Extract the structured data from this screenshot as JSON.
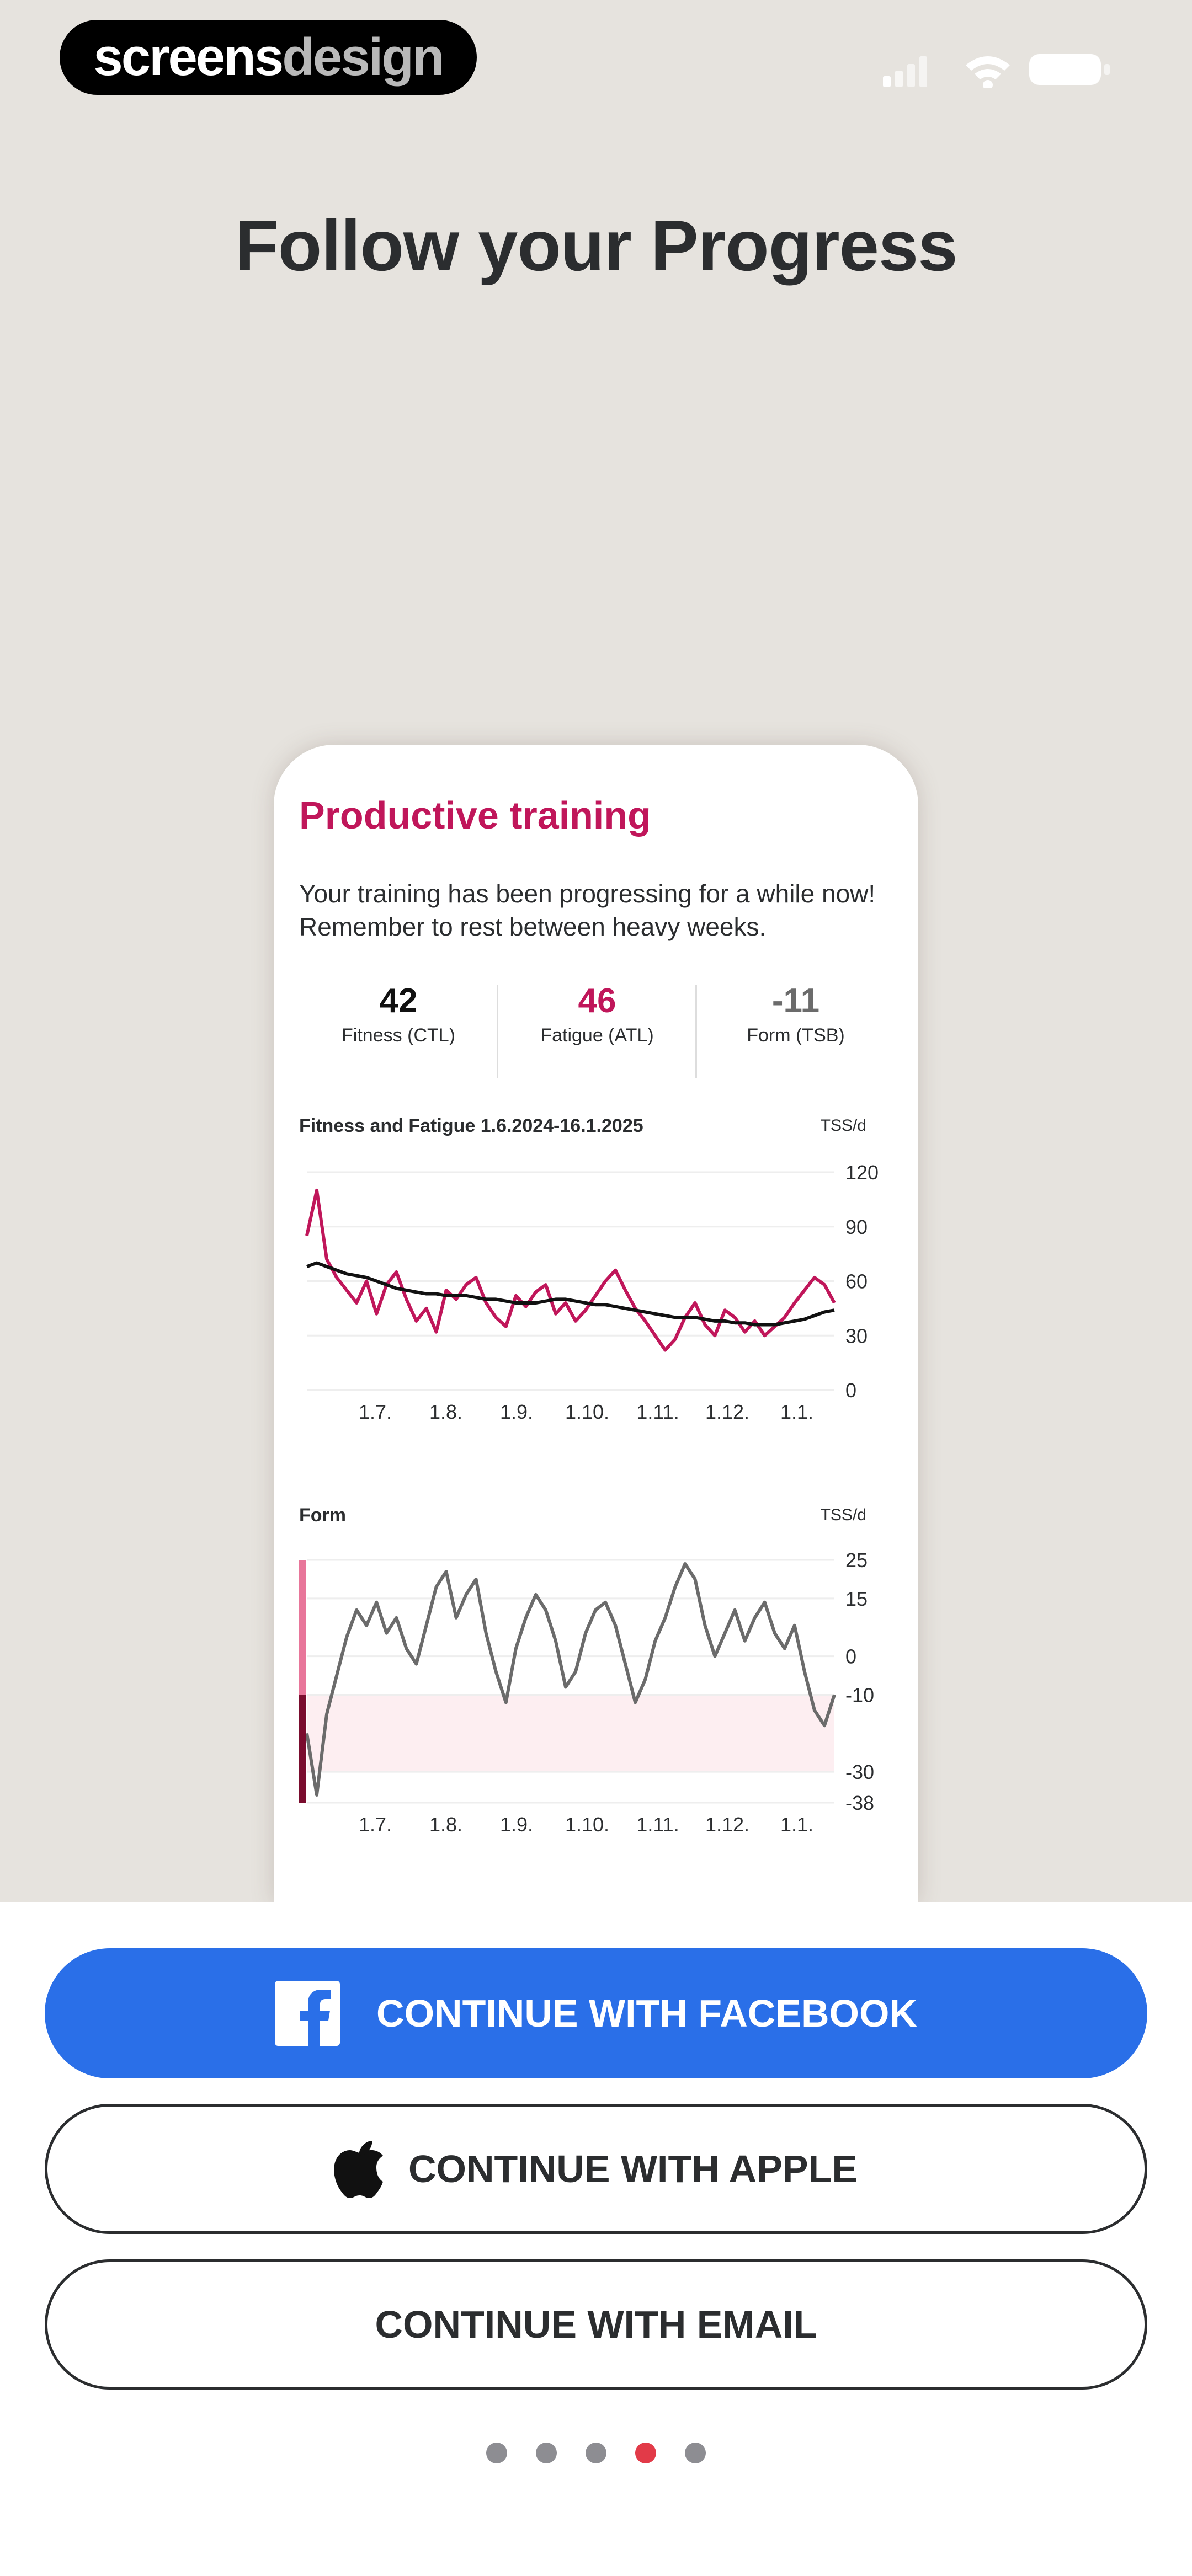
{
  "brand": {
    "part1": "screens",
    "part2": "design"
  },
  "headline": "Follow your Progress",
  "card": {
    "title": "Productive training",
    "description": "Your training has been progressing for a while now! Remember to rest between heavy weeks.",
    "metrics": [
      {
        "value": "42",
        "label": "Fitness (CTL)",
        "color": "#111111"
      },
      {
        "value": "46",
        "label": "Fatigue (ATL)",
        "color": "#c0165a"
      },
      {
        "value": "-11",
        "label": "Form (TSB)",
        "color": "#6b6b6b"
      }
    ]
  },
  "chart_data": [
    {
      "type": "line",
      "title": "Fitness and Fatigue 1.6.2024-16.1.2025",
      "unit": "TSS/d",
      "x_ticks": [
        "1.7.",
        "1.8.",
        "1.9.",
        "1.10.",
        "1.11.",
        "1.12.",
        "1.1."
      ],
      "y_ticks": [
        120,
        90,
        60,
        30,
        0
      ],
      "ylim": [
        0,
        120
      ],
      "series": [
        {
          "color": "#c0165a",
          "values": [
            85,
            110,
            72,
            62,
            55,
            48,
            60,
            42,
            58,
            65,
            50,
            38,
            45,
            32,
            55,
            50,
            58,
            62,
            48,
            40,
            35,
            52,
            46,
            54,
            58,
            42,
            48,
            38,
            44,
            52,
            60,
            66,
            55,
            45,
            38,
            30,
            22,
            28,
            40,
            48,
            36,
            30,
            44,
            40,
            32,
            38,
            30,
            35,
            40,
            48,
            55,
            62,
            58,
            48
          ]
        },
        {
          "color": "#111111",
          "values": [
            68,
            70,
            68,
            66,
            64,
            63,
            62,
            60,
            58,
            56,
            55,
            54,
            53,
            53,
            52,
            52,
            52,
            51,
            50,
            50,
            49,
            48,
            48,
            48,
            49,
            50,
            50,
            49,
            48,
            47,
            47,
            46,
            45,
            44,
            43,
            42,
            41,
            40,
            40,
            40,
            39,
            38,
            38,
            37,
            37,
            36,
            36,
            36,
            37,
            38,
            39,
            41,
            43,
            44
          ]
        }
      ],
      "grid": true
    },
    {
      "type": "line",
      "title": "Form",
      "unit": "TSS/d",
      "x_ticks": [
        "1.7.",
        "1.8.",
        "1.9.",
        "1.10.",
        "1.11.",
        "1.12.",
        "1.1."
      ],
      "y_ticks": [
        25,
        15,
        0,
        -10,
        -30,
        -38
      ],
      "ylim": [
        -38,
        25
      ],
      "series": [
        {
          "color": "#6b6b6b",
          "values": [
            -20,
            -36,
            -15,
            -5,
            5,
            12,
            8,
            14,
            6,
            10,
            2,
            -2,
            8,
            18,
            22,
            10,
            16,
            20,
            6,
            -4,
            -12,
            2,
            10,
            16,
            12,
            4,
            -8,
            -4,
            6,
            12,
            14,
            8,
            -2,
            -12,
            -6,
            4,
            10,
            18,
            24,
            20,
            8,
            0,
            6,
            12,
            4,
            10,
            14,
            6,
            2,
            8,
            -4,
            -14,
            -18,
            -10
          ]
        }
      ],
      "bands": [
        {
          "from": -10,
          "to": -30,
          "color": "#fdeef1"
        }
      ],
      "grid": true
    }
  ],
  "buttons": {
    "facebook": "CONTINUE WITH FACEBOOK",
    "apple": "CONTINUE WITH APPLE",
    "email": "CONTINUE WITH EMAIL"
  },
  "pagination": {
    "count": 5,
    "active_index": 3
  },
  "icons": {
    "facebook": "facebook-logo-icon",
    "apple": "apple-logo-icon",
    "signal": "cellular-signal-icon",
    "wifi": "wifi-icon",
    "battery": "battery-icon"
  },
  "colors": {
    "accent": "#c0165a",
    "facebook_blue": "#2a6fe8",
    "active_dot": "#e23a48"
  }
}
